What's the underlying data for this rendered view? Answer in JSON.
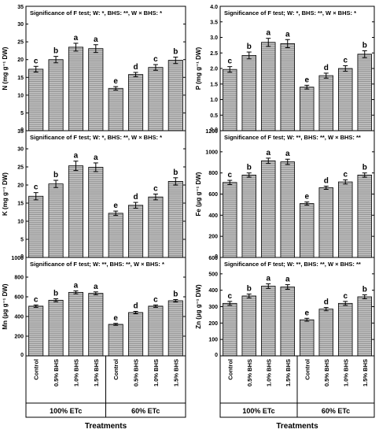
{
  "chart_data": [
    {
      "type": "bar",
      "categories": [
        "Control",
        "0.5% BHS",
        "1.0% BHS",
        "1.5% BHS",
        "Control",
        "0.5% BHS",
        "1.0% BHS",
        "1.5% BHS"
      ],
      "values": [
        17.3,
        20.0,
        23.5,
        23.1,
        11.9,
        15.8,
        17.8,
        19.8
      ],
      "errors": [
        0.8,
        0.9,
        1.1,
        1.1,
        0.5,
        0.6,
        0.8,
        0.9
      ],
      "letters": [
        "c",
        "b",
        "a",
        "a",
        "e",
        "d",
        "c",
        "b"
      ],
      "ylabel": "N (mg g⁻¹ DW)",
      "ylim": [
        0,
        35
      ],
      "yticks": [
        0,
        5,
        10,
        15,
        20,
        25,
        30,
        35
      ],
      "ytick_labels": [
        "0",
        "5",
        "10",
        "15",
        "20",
        "25",
        "30",
        "35"
      ],
      "annotation": "Significance of F test; W: *, BHS: **, W × BHS: *"
    },
    {
      "type": "bar",
      "categories": [
        "Control",
        "0.5% BHS",
        "1.0% BHS",
        "1.5% BHS",
        "Control",
        "0.5% BHS",
        "1.0% BHS",
        "1.5% BHS"
      ],
      "values": [
        1.97,
        2.42,
        2.84,
        2.8,
        1.4,
        1.77,
        2.0,
        2.46
      ],
      "errors": [
        0.09,
        0.11,
        0.13,
        0.13,
        0.06,
        0.08,
        0.09,
        0.11
      ],
      "letters": [
        "c",
        "b",
        "a",
        "a",
        "e",
        "d",
        "c",
        "b"
      ],
      "ylabel": "P (mg g⁻¹ DW)",
      "ylim": [
        0,
        4
      ],
      "yticks": [
        0,
        0.5,
        1,
        1.5,
        2,
        2.5,
        3,
        3.5,
        4
      ],
      "ytick_labels": [
        "0.0",
        "0.5",
        "1.0",
        "1.5",
        "2.0",
        "2.5",
        "3.0",
        "3.5",
        "4.0"
      ],
      "annotation": "Significance of F test; W: *, BHS: **, W × BHS: *"
    },
    {
      "type": "bar",
      "categories": [
        "Control",
        "0.5% BHS",
        "1.0% BHS",
        "1.5% BHS",
        "Control",
        "0.5% BHS",
        "1.0% BHS",
        "1.5% BHS"
      ],
      "values": [
        16.9,
        20.3,
        25.3,
        24.9,
        12.2,
        14.4,
        16.7,
        21.0
      ],
      "errors": [
        1.0,
        1.0,
        1.3,
        1.2,
        0.6,
        0.8,
        0.8,
        1.0
      ],
      "letters": [
        "c",
        "b",
        "a",
        "a",
        "e",
        "d",
        "c",
        "b"
      ],
      "ylabel": "K (mg g⁻¹ DW)",
      "ylim": [
        0,
        35
      ],
      "yticks": [
        0,
        5,
        10,
        15,
        20,
        25,
        30,
        35
      ],
      "ytick_labels": [
        "0",
        "5",
        "10",
        "15",
        "20",
        "25",
        "30",
        "35"
      ],
      "annotation": "Significance of F test; W: *, BHS: **, W × BHS: *"
    },
    {
      "type": "bar",
      "categories": [
        "Control",
        "0.5% BHS",
        "1.0% BHS",
        "1.5% BHS",
        "Control",
        "0.5% BHS",
        "1.0% BHS",
        "1.5% BHS"
      ],
      "values": [
        710,
        780,
        915,
        905,
        510,
        660,
        715,
        780
      ],
      "errors": [
        20,
        20,
        25,
        25,
        15,
        15,
        20,
        20
      ],
      "letters": [
        "c",
        "b",
        "a",
        "a",
        "e",
        "d",
        "c",
        "b"
      ],
      "ylabel": "Fe (µg g⁻¹ DW)",
      "ylim": [
        0,
        1200
      ],
      "yticks": [
        0,
        200,
        400,
        600,
        800,
        1000,
        1200
      ],
      "ytick_labels": [
        "0",
        "200",
        "400",
        "600",
        "800",
        "1000",
        "1200"
      ],
      "annotation": "Significance of F test; W: **, BHS: **, W × BHS: **"
    },
    {
      "type": "bar",
      "categories": [
        "Control",
        "0.5% BHS",
        "1.0% BHS",
        "1.5% BHS",
        "Control",
        "0.5% BHS",
        "1.0% BHS",
        "1.5% BHS"
      ],
      "values": [
        505,
        565,
        645,
        635,
        320,
        440,
        505,
        560
      ],
      "errors": [
        12,
        15,
        15,
        15,
        10,
        12,
        12,
        12
      ],
      "letters": [
        "c",
        "b",
        "a",
        "a",
        "e",
        "d",
        "c",
        "b"
      ],
      "ylabel": "Mn (µg g⁻¹ DW)",
      "ylim": [
        0,
        1000
      ],
      "yticks": [
        0,
        200,
        400,
        600,
        800,
        1000
      ],
      "ytick_labels": [
        "0",
        "200",
        "400",
        "600",
        "800",
        "1000"
      ],
      "annotation": "Significance of F test; W: **, BHS: **, W × BHS: *"
    },
    {
      "type": "bar",
      "categories": [
        "Control",
        "0.5% BHS",
        "1.0% BHS",
        "1.5% BHS",
        "Control",
        "0.5% BHS",
        "1.0% BHS",
        "1.5% BHS"
      ],
      "values": [
        320,
        365,
        425,
        420,
        220,
        285,
        320,
        360
      ],
      "errors": [
        12,
        12,
        14,
        14,
        9,
        10,
        12,
        12
      ],
      "letters": [
        "c",
        "b",
        "a",
        "a",
        "e",
        "d",
        "c",
        "b"
      ],
      "ylabel": "Zn (µg g⁻¹ DW)",
      "ylim": [
        0,
        600
      ],
      "yticks": [
        0,
        100,
        200,
        300,
        400,
        500,
        600
      ],
      "ytick_labels": [
        "0",
        "100",
        "200",
        "300",
        "400",
        "500",
        "600"
      ],
      "annotation": "Significance of F test; W: **, BHS: **, W × BHS: **"
    }
  ],
  "x_axis": {
    "groups": [
      "100% ETc",
      "60% ETc"
    ],
    "title": "Treatments"
  },
  "colors": {
    "bar_fill": "#bdbdbd",
    "bar_stripe": "#8a8a8a",
    "axis": "#000000"
  }
}
